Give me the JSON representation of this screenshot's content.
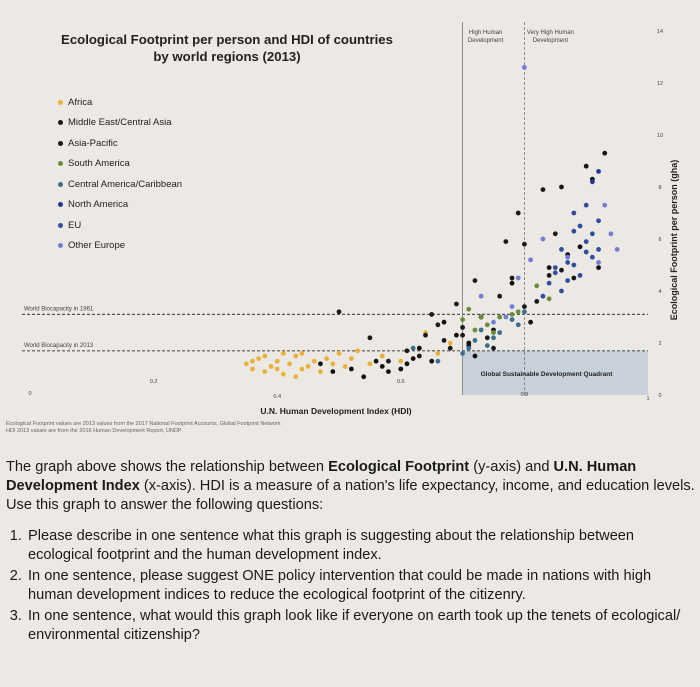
{
  "chart_data": {
    "type": "scatter",
    "title": "Ecological Footprint per person and HDI of countries\nby world regions (2013)",
    "xlabel": "U.N. Human Development Index (HDI)",
    "ylabel": "Ecological Footprint per person (gha)",
    "xlim": [
      0,
      1
    ],
    "ylim": [
      0,
      14
    ],
    "x_ticks": [
      0,
      0.2,
      0.4,
      0.6,
      0.8,
      1
    ],
    "x_tick_labels": [
      "0",
      "0.2",
      "0.4",
      "0.6",
      "0.8",
      "1"
    ],
    "y_ticks": [
      0,
      2,
      4,
      6,
      8,
      10,
      12,
      14
    ],
    "y_tick_labels": [
      "0",
      "2",
      "4",
      "6",
      "8",
      "10",
      "12",
      "14"
    ],
    "legend_position": "upper-left",
    "region_labels": {
      "high_human_development": "High Human\nDevelopment",
      "very_high_human_development": "Very High Human\nDevelopment",
      "quadrant": "Global Sustainable Development Quadrant"
    },
    "thresholds": {
      "high_hdi": 0.7,
      "very_high_hdi": 0.8
    },
    "reference_lines": [
      {
        "label": "World Biocapacity in 1961",
        "y": 3.1
      },
      {
        "label": "World Biocapacity in 2013",
        "y": 1.7
      }
    ],
    "quadrant": {
      "x_min": 0.7,
      "x_max": 1.0,
      "y_min": 0,
      "y_max": 1.7
    },
    "series": [
      {
        "name": "Africa",
        "color": "#e8b23a",
        "points": [
          [
            0.35,
            1.2
          ],
          [
            0.36,
            1.0
          ],
          [
            0.37,
            1.4
          ],
          [
            0.38,
            0.9
          ],
          [
            0.39,
            1.1
          ],
          [
            0.4,
            1.3
          ],
          [
            0.41,
            0.8
          ],
          [
            0.42,
            1.2
          ],
          [
            0.43,
            1.5
          ],
          [
            0.44,
            1.0
          ],
          [
            0.45,
            1.1
          ],
          [
            0.46,
            1.3
          ],
          [
            0.47,
            0.9
          ],
          [
            0.48,
            1.4
          ],
          [
            0.49,
            1.2
          ],
          [
            0.5,
            1.6
          ],
          [
            0.51,
            1.1
          ],
          [
            0.52,
            1.4
          ],
          [
            0.53,
            1.7
          ],
          [
            0.55,
            1.2
          ],
          [
            0.57,
            1.5
          ],
          [
            0.6,
            1.3
          ],
          [
            0.62,
            1.8
          ],
          [
            0.64,
            2.4
          ],
          [
            0.66,
            1.6
          ],
          [
            0.68,
            2.0
          ],
          [
            0.41,
            1.6
          ],
          [
            0.43,
            0.7
          ],
          [
            0.38,
            1.5
          ],
          [
            0.44,
            1.6
          ],
          [
            0.36,
            1.3
          ],
          [
            0.4,
            1.0
          ]
        ]
      },
      {
        "name": "Middle East/Central Asia",
        "color": "#1a1a1a",
        "points": [
          [
            0.5,
            3.2
          ],
          [
            0.55,
            2.2
          ],
          [
            0.58,
            1.3
          ],
          [
            0.61,
            1.7
          ],
          [
            0.63,
            1.5
          ],
          [
            0.64,
            2.3
          ],
          [
            0.65,
            3.1
          ],
          [
            0.67,
            2.1
          ],
          [
            0.69,
            3.5
          ],
          [
            0.7,
            2.6
          ],
          [
            0.72,
            4.4
          ],
          [
            0.73,
            3.0
          ],
          [
            0.74,
            2.2
          ],
          [
            0.75,
            1.8
          ],
          [
            0.76,
            3.8
          ],
          [
            0.77,
            5.9
          ],
          [
            0.78,
            4.5
          ],
          [
            0.8,
            3.4
          ],
          [
            0.82,
            3.6
          ],
          [
            0.84,
            4.6
          ],
          [
            0.86,
            4.8
          ],
          [
            0.88,
            4.5
          ],
          [
            0.8,
            5.8
          ],
          [
            0.83,
            7.9
          ],
          [
            0.86,
            8.0
          ],
          [
            0.85,
            6.2
          ],
          [
            0.7,
            2.3
          ],
          [
            0.66,
            2.7
          ],
          [
            0.71,
            1.9
          ],
          [
            0.79,
            7.0
          ],
          [
            0.68,
            1.8
          ]
        ]
      },
      {
        "name": "Asia-Pacific",
        "color": "#111111",
        "points": [
          [
            0.47,
            1.2
          ],
          [
            0.49,
            0.9
          ],
          [
            0.52,
            1.0
          ],
          [
            0.54,
            0.7
          ],
          [
            0.57,
            1.1
          ],
          [
            0.58,
            0.9
          ],
          [
            0.6,
            1.0
          ],
          [
            0.62,
            1.4
          ],
          [
            0.63,
            1.8
          ],
          [
            0.65,
            1.3
          ],
          [
            0.67,
            2.8
          ],
          [
            0.69,
            2.3
          ],
          [
            0.71,
            2.0
          ],
          [
            0.73,
            3.0
          ],
          [
            0.75,
            2.5
          ],
          [
            0.78,
            4.3
          ],
          [
            0.81,
            2.8
          ],
          [
            0.84,
            4.9
          ],
          [
            0.87,
            5.4
          ],
          [
            0.89,
            5.7
          ],
          [
            0.9,
            8.8
          ],
          [
            0.93,
            9.3
          ],
          [
            0.91,
            8.3
          ],
          [
            0.92,
            4.9
          ],
          [
            0.56,
            1.3
          ],
          [
            0.61,
            1.2
          ],
          [
            0.72,
            1.5
          ]
        ]
      },
      {
        "name": "South America",
        "color": "#6b8e3a",
        "points": [
          [
            0.7,
            2.9
          ],
          [
            0.71,
            3.3
          ],
          [
            0.72,
            2.5
          ],
          [
            0.73,
            3.0
          ],
          [
            0.74,
            2.7
          ],
          [
            0.75,
            2.4
          ],
          [
            0.76,
            3.0
          ],
          [
            0.78,
            3.1
          ],
          [
            0.79,
            3.2
          ],
          [
            0.82,
            4.2
          ],
          [
            0.84,
            3.7
          ]
        ]
      },
      {
        "name": "Central America/Caribbean",
        "color": "#3b6e8f",
        "points": [
          [
            0.62,
            1.8
          ],
          [
            0.66,
            1.3
          ],
          [
            0.7,
            1.6
          ],
          [
            0.71,
            1.8
          ],
          [
            0.72,
            2.1
          ],
          [
            0.73,
            2.5
          ],
          [
            0.74,
            1.9
          ],
          [
            0.75,
            2.2
          ],
          [
            0.76,
            2.4
          ],
          [
            0.78,
            2.9
          ],
          [
            0.79,
            2.7
          ],
          [
            0.8,
            3.2
          ]
        ]
      },
      {
        "name": "North America",
        "color": "#1f3a93",
        "points": [
          [
            0.91,
            8.2
          ],
          [
            0.92,
            8.6
          ]
        ]
      },
      {
        "name": "EU",
        "color": "#2e4e9e",
        "points": [
          [
            0.83,
            3.8
          ],
          [
            0.84,
            4.3
          ],
          [
            0.85,
            4.7
          ],
          [
            0.86,
            4.0
          ],
          [
            0.87,
            5.1
          ],
          [
            0.88,
            5.0
          ],
          [
            0.89,
            4.6
          ],
          [
            0.9,
            5.9
          ],
          [
            0.91,
            5.3
          ],
          [
            0.92,
            5.6
          ],
          [
            0.86,
            5.6
          ],
          [
            0.88,
            6.3
          ],
          [
            0.89,
            6.5
          ],
          [
            0.9,
            5.5
          ],
          [
            0.91,
            6.2
          ],
          [
            0.87,
            4.4
          ],
          [
            0.85,
            4.9
          ],
          [
            0.92,
            6.7
          ],
          [
            0.9,
            7.3
          ],
          [
            0.88,
            7.0
          ]
        ]
      },
      {
        "name": "Other Europe",
        "color": "#6f7fd4",
        "points": [
          [
            0.73,
            3.8
          ],
          [
            0.75,
            2.8
          ],
          [
            0.77,
            3.0
          ],
          [
            0.78,
            3.4
          ],
          [
            0.79,
            4.5
          ],
          [
            0.81,
            5.2
          ],
          [
            0.83,
            6.0
          ],
          [
            0.87,
            5.3
          ],
          [
            0.92,
            5.1
          ],
          [
            0.93,
            7.3
          ],
          [
            0.94,
            6.2
          ],
          [
            0.95,
            5.6
          ],
          [
            0.8,
            12.6
          ]
        ]
      }
    ]
  },
  "notes": [
    "Ecological Footprint values are 2013 values from the 2017 National Footprint Accounts, Global Footprint Network",
    "HDI 2013 values are from the 2016 Human Development Report, UNDP"
  ],
  "intro": {
    "part1": "The graph above shows the relationship between ",
    "bold1": "Ecological Footprint",
    "part2": " (y-axis) and ",
    "bold2": "U.N. Human Development Index",
    "part3": " (x-axis). HDI is a measure of a nation's life expectancy, income, and education levels. Use this graph to answer the following questions:"
  },
  "questions": [
    "Please describe in one sentence what this graph is suggesting about the relationship between ecological footprint and the human development index.",
    "In one sentence, please suggest ONE policy intervention that could be made in nations with high human development indices to reduce the ecological footprint of the citizenry.",
    "In one sentence, what would this graph look like if everyone on earth took up the tenets of ecological/ environmental citizenship?"
  ]
}
